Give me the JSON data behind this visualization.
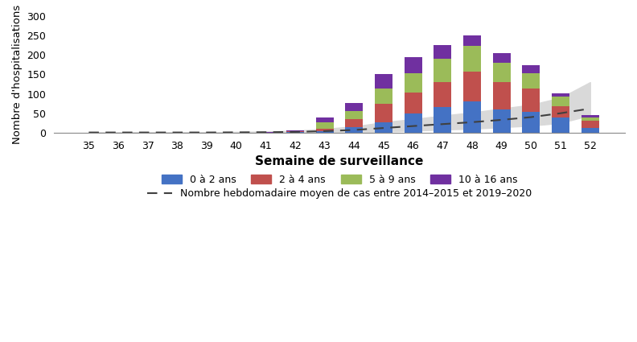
{
  "weeks": [
    35,
    36,
    37,
    38,
    39,
    40,
    41,
    42,
    43,
    44,
    45,
    46,
    47,
    48,
    49,
    50,
    51,
    52
  ],
  "age_0_2": [
    0,
    0,
    0,
    0,
    0,
    0,
    0,
    1,
    3,
    15,
    27,
    50,
    65,
    80,
    60,
    53,
    40,
    12
  ],
  "age_2_4": [
    0,
    0,
    0,
    0,
    0,
    0,
    0,
    2,
    8,
    20,
    47,
    53,
    65,
    78,
    70,
    60,
    28,
    18
  ],
  "age_5_9": [
    0,
    0,
    0,
    0,
    0,
    0,
    0,
    1,
    15,
    20,
    40,
    50,
    60,
    65,
    50,
    40,
    25,
    10
  ],
  "age_10_16": [
    0,
    0,
    0,
    0,
    0,
    0,
    1,
    1,
    13,
    22,
    37,
    42,
    35,
    27,
    25,
    20,
    8,
    5
  ],
  "mean_line": [
    0.5,
    0.5,
    0.5,
    0.5,
    0.5,
    0.8,
    1.2,
    2,
    4,
    7,
    12,
    17,
    22,
    27,
    33,
    40,
    50,
    62
  ],
  "mean_lower": [
    0,
    0,
    0,
    0,
    0,
    0,
    0,
    0,
    0.5,
    1,
    3,
    5,
    8,
    10,
    14,
    18,
    25,
    45
  ],
  "mean_upper": [
    1,
    1,
    1,
    1,
    1,
    2,
    3,
    5,
    10,
    16,
    27,
    35,
    44,
    52,
    62,
    72,
    90,
    130
  ],
  "colors": {
    "age_0_2": "#4472c4",
    "age_2_4": "#c0504d",
    "age_5_9": "#9bbb59",
    "age_10_16": "#7030a0"
  },
  "fill_color": "#d9d9d9",
  "line_color": "#404040",
  "bg_color": "#ffffff",
  "grid_color": "#ffffff",
  "ylabel": "Nombre d'hospitalisations",
  "xlabel": "Semaine de surveillance",
  "ylim": [
    0,
    300
  ],
  "yticks": [
    0,
    50,
    100,
    150,
    200,
    250,
    300
  ],
  "legend_labels": [
    "0 à 2 ans",
    "2 à 4 ans",
    "5 à 9 ans",
    "10 à 16 ans"
  ],
  "dashed_label": "Nombre hebdomadaire moyen de cas entre 2014–2015 et 2019–2020",
  "bar_width": 0.6
}
